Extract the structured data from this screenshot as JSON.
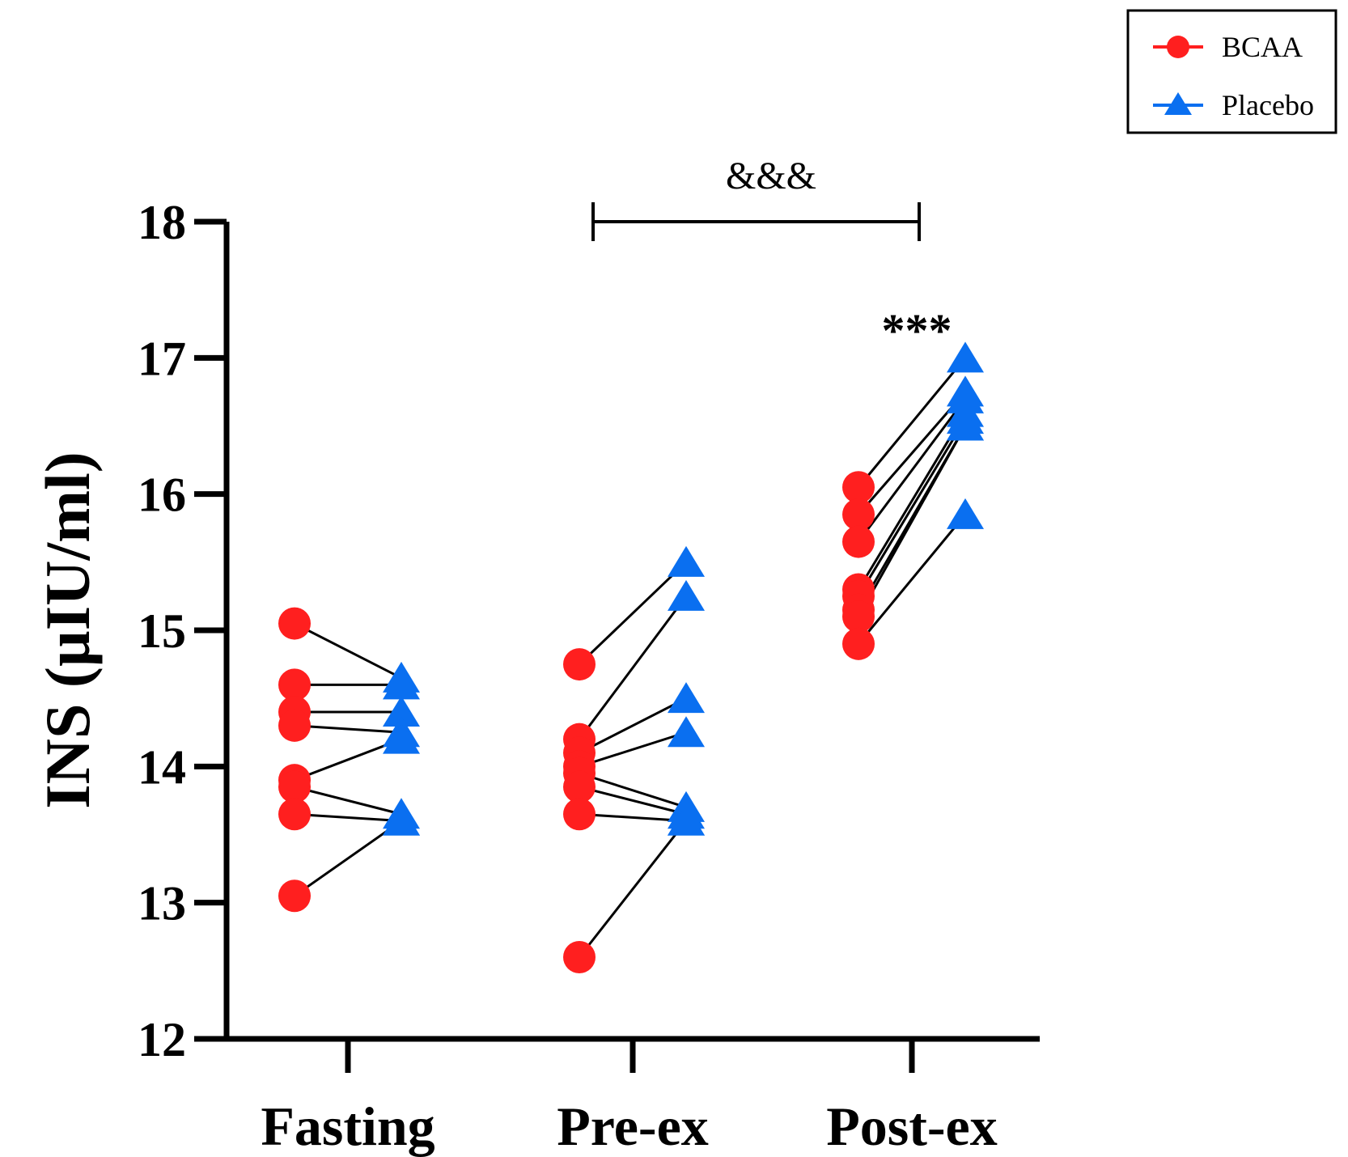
{
  "chart_data": {
    "type": "scatter",
    "title": "",
    "xlabel": "",
    "ylabel": "INS (µIU/ml)",
    "ylim": [
      12,
      18
    ],
    "yticks": [
      12,
      13,
      14,
      15,
      16,
      17,
      18
    ],
    "categories": [
      "Fasting",
      "Pre-ex",
      "Post-ex"
    ],
    "series": [
      {
        "name": "BCAA",
        "color": "#ff1f1f",
        "marker": "circle",
        "values": [
          [
            15.05,
            14.6,
            14.4,
            14.3,
            13.9,
            13.85,
            13.65,
            13.05
          ],
          [
            14.75,
            14.2,
            14.1,
            14.0,
            13.95,
            13.85,
            13.65,
            12.6
          ],
          [
            16.05,
            15.85,
            15.65,
            15.3,
            15.25,
            15.15,
            15.1,
            14.9
          ]
        ]
      },
      {
        "name": "Placebo",
        "color": "#0a6ff0",
        "marker": "triangle",
        "values": [
          [
            14.65,
            14.6,
            14.4,
            14.25,
            14.2,
            13.65,
            13.6,
            13.6
          ],
          [
            15.5,
            15.25,
            14.5,
            14.25,
            13.7,
            13.65,
            13.6,
            13.6
          ],
          [
            17.0,
            16.75,
            16.7,
            16.6,
            16.55,
            16.5,
            16.5,
            15.85
          ]
        ]
      }
    ],
    "annotations": [
      {
        "type": "bracket",
        "label": "&&&",
        "from": "Pre-ex",
        "to": "Post-ex"
      },
      {
        "type": "text",
        "label": "***",
        "at": "Post-ex"
      }
    ],
    "legend": {
      "placement": "top-right",
      "entries": [
        "BCAA",
        "Placebo"
      ]
    }
  }
}
